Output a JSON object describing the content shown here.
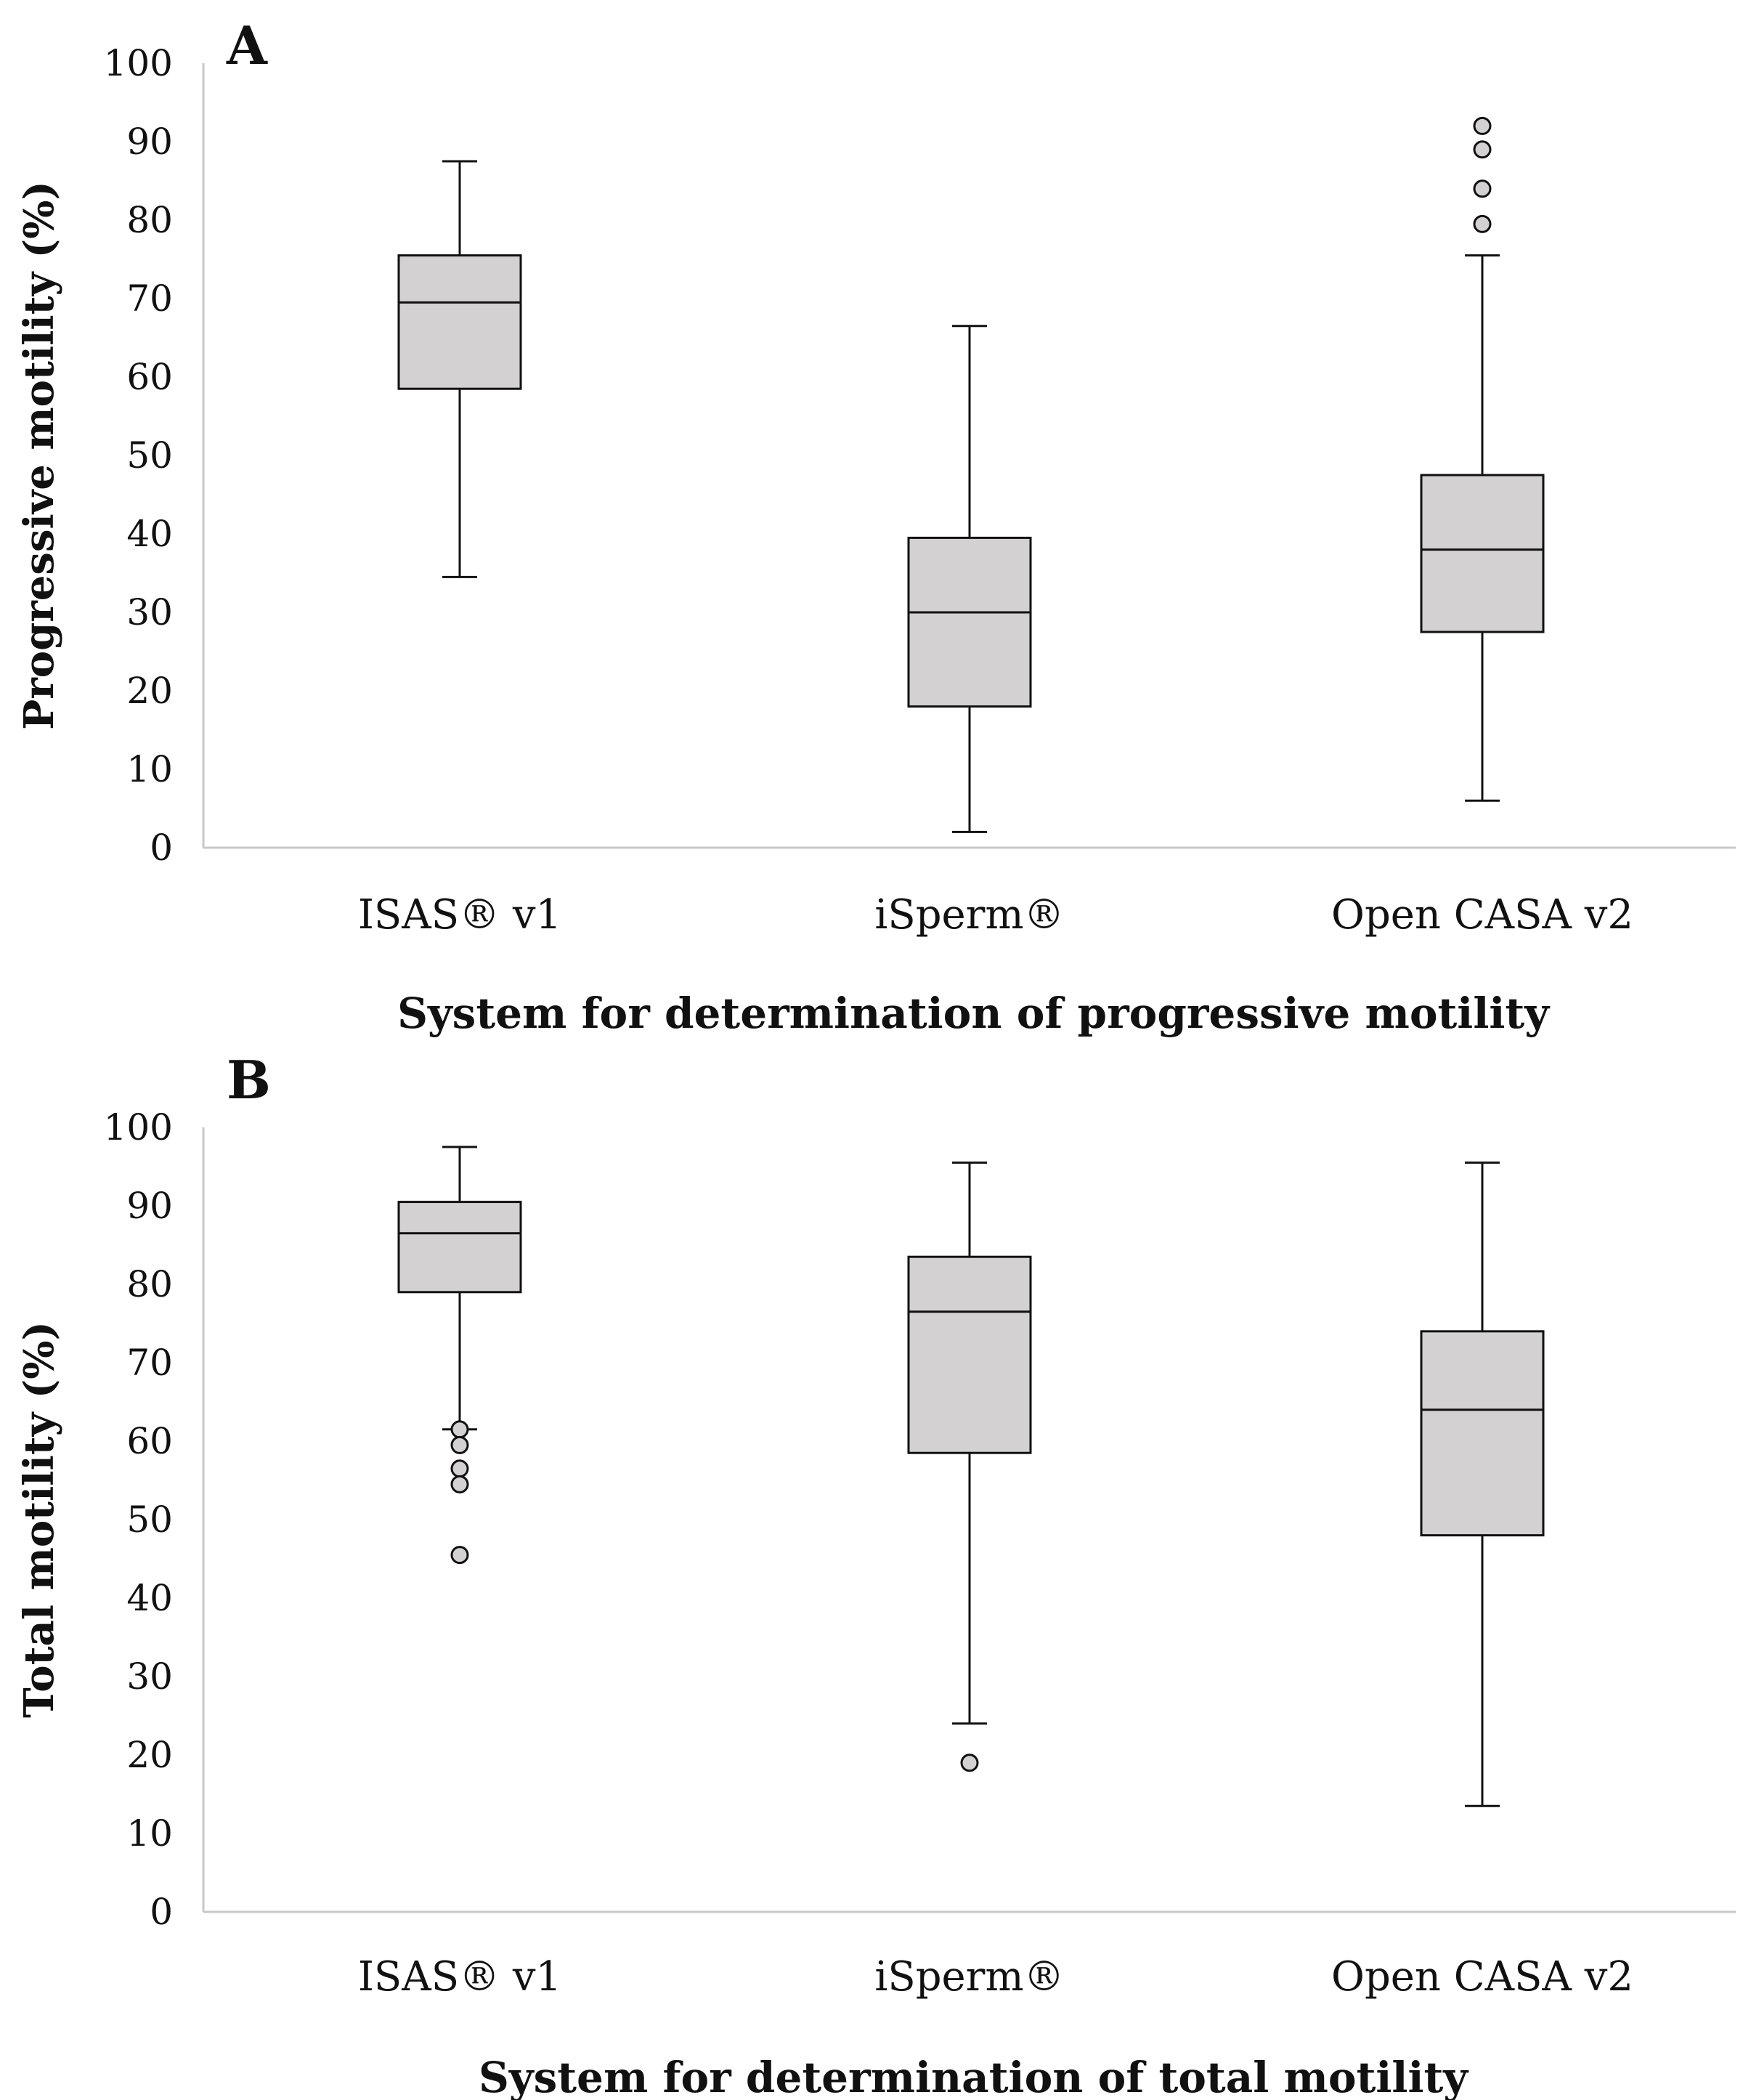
{
  "chart_data": [
    {
      "type": "box",
      "panel_label": "A",
      "ylabel": "Progressive motility (%)",
      "xlabel": "System for determination of progressive motility",
      "ylim": [
        0,
        100
      ],
      "yticks": [
        0,
        10,
        20,
        30,
        40,
        50,
        60,
        70,
        80,
        90,
        100
      ],
      "categories": [
        "ISAS® v1",
        "iSperm®",
        "Open CASA v2"
      ],
      "boxes": [
        {
          "min": 34.5,
          "q1": 58.5,
          "median": 69.5,
          "q3": 75.5,
          "max": 87.5,
          "outliers": []
        },
        {
          "min": 2,
          "q1": 18,
          "median": 30,
          "q3": 39.5,
          "max": 66.5,
          "outliers": []
        },
        {
          "min": 6,
          "q1": 27.5,
          "median": 38,
          "q3": 47.5,
          "max": 75.5,
          "outliers": [
            79.5,
            84,
            89,
            92
          ]
        }
      ],
      "colors": {
        "box_fill": "#d4d1d2",
        "stroke": "#111111"
      },
      "grid": false
    },
    {
      "type": "box",
      "panel_label": "B",
      "ylabel": "Total motility (%)",
      "xlabel": "System for determination of total motility",
      "ylim": [
        0,
        100
      ],
      "yticks": [
        0,
        10,
        20,
        30,
        40,
        50,
        60,
        70,
        80,
        90,
        100
      ],
      "categories": [
        "ISAS® v1",
        "iSperm®",
        "Open CASA v2"
      ],
      "boxes": [
        {
          "min": 61.5,
          "q1": 79,
          "median": 86.5,
          "q3": 90.5,
          "max": 97.5,
          "outliers": [
            61.5,
            59.5,
            56.5,
            54.5,
            45.5
          ]
        },
        {
          "min": 24,
          "q1": 58.5,
          "median": 76.5,
          "q3": 83.5,
          "max": 95.5,
          "outliers": [
            19
          ]
        },
        {
          "min": 13.5,
          "q1": 48,
          "median": 64,
          "q3": 74,
          "max": 95.5,
          "outliers": []
        }
      ],
      "colors": {
        "box_fill": "#d4d1d2",
        "stroke": "#111111"
      },
      "grid": false
    }
  ]
}
